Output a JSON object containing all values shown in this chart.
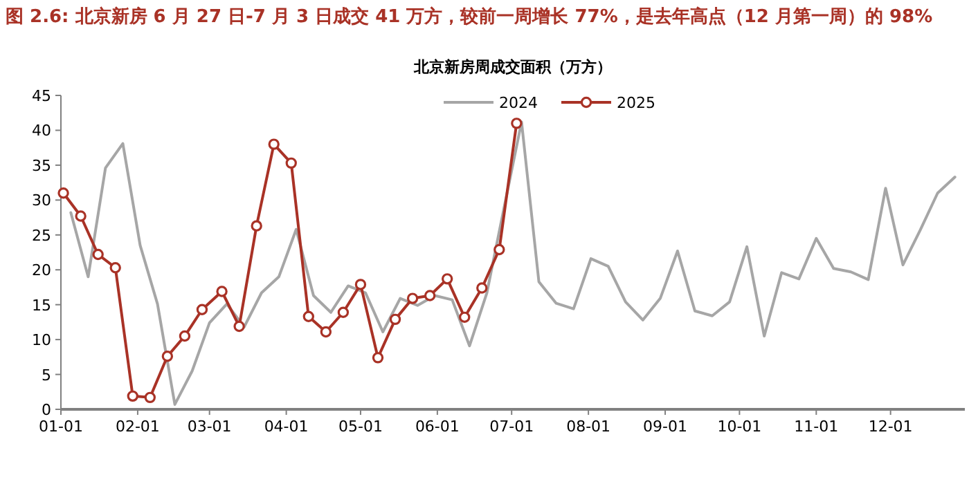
{
  "chart_data": {
    "type": "line",
    "title": "图 2.6: 北京新房 6 月 27 日-7 月 3 日成交 41 万方，较前一周增长 77%，是去年高点（12 月第一周）的 98%",
    "subtitle": "北京新房周成交面积（万方）",
    "series": [
      {
        "name": "2024",
        "color": "#a6a6a6",
        "marker": "none",
        "x": [
          "--01-05",
          "--01-12",
          "--01-19",
          "--01-26",
          "--02-02",
          "--02-09",
          "--02-16",
          "--02-23",
          "--03-01",
          "--03-08",
          "--03-15",
          "--03-22",
          "--03-29",
          "--04-05",
          "--04-12",
          "--04-19",
          "--04-26",
          "--05-03",
          "--05-10",
          "--05-17",
          "--05-24",
          "--05-31",
          "--06-07",
          "--06-14",
          "--06-21",
          "--06-28",
          "--07-05",
          "--07-12",
          "--07-19",
          "--07-26",
          "--08-02",
          "--08-09",
          "--08-16",
          "--08-23",
          "--08-30",
          "--09-06",
          "--09-13",
          "--09-20",
          "--09-27",
          "--10-04",
          "--10-11",
          "--10-18",
          "--10-25",
          "--11-01",
          "--11-08",
          "--11-15",
          "--11-22",
          "--11-29",
          "--12-06",
          "--12-13",
          "--12-20",
          "--12-27"
        ],
        "values": [
          28.2,
          19.0,
          34.6,
          38.1,
          23.5,
          15.1,
          0.7,
          5.5,
          12.4,
          15.1,
          11.8,
          16.7,
          19.0,
          25.8,
          16.3,
          13.9,
          17.7,
          16.7,
          11.1,
          15.9,
          14.9,
          16.3,
          15.7,
          9.1,
          16.7,
          29,
          41.2,
          18.3,
          15.2,
          14.4,
          21.6,
          20.5,
          15.4,
          12.8,
          15.9,
          22.7,
          14.1,
          13.4,
          15.4,
          23.3,
          10.5,
          19.6,
          18.7,
          24.5,
          20.2,
          19.7,
          18.6,
          31.7,
          20.7,
          25.7,
          31.0,
          33.3
        ]
      },
      {
        "name": "2025",
        "color": "#a93226",
        "marker": "circle",
        "x": [
          "--01-02",
          "--01-09",
          "--01-16",
          "--01-23",
          "--01-30",
          "--02-06",
          "--02-13",
          "--02-20",
          "--02-27",
          "--03-06",
          "--03-13",
          "--03-20",
          "--03-27",
          "--04-03",
          "--04-10",
          "--04-17",
          "--04-24",
          "--05-01",
          "--05-08",
          "--05-15",
          "--05-22",
          "--05-29",
          "--06-05",
          "--06-12",
          "--06-19",
          "--06-26",
          "--07-03"
        ],
        "values": [
          31,
          27.7,
          22.2,
          20.3,
          1.9,
          1.7,
          7.6,
          10.5,
          14.3,
          16.9,
          11.9,
          26.3,
          38,
          35.3,
          13.3,
          11.1,
          13.9,
          17.9,
          7.4,
          12.9,
          15.9,
          16.3,
          18.7,
          13.2,
          17.4,
          22.9,
          41
        ]
      }
    ],
    "xlim": [
      "--01-01",
      "--12-31"
    ],
    "xticks": [
      {
        "value": "--01-01",
        "label": "01-01"
      },
      {
        "value": "--02-01",
        "label": "02-01"
      },
      {
        "value": "--03-01",
        "label": "03-01"
      },
      {
        "value": "--04-01",
        "label": "04-01"
      },
      {
        "value": "--05-01",
        "label": "05-01"
      },
      {
        "value": "--06-01",
        "label": "06-01"
      },
      {
        "value": "--07-01",
        "label": "07-01"
      },
      {
        "value": "--08-01",
        "label": "08-01"
      },
      {
        "value": "--09-01",
        "label": "09-01"
      },
      {
        "value": "--10-01",
        "label": "10-01"
      },
      {
        "value": "--11-01",
        "label": "11-01"
      },
      {
        "value": "--12-01",
        "label": "12-01"
      }
    ],
    "ylim": [
      0,
      45
    ],
    "yticks": [
      0,
      5,
      10,
      15,
      20,
      25,
      30,
      35,
      40,
      45
    ],
    "grid": false,
    "legend": "top",
    "line_style": "solid"
  }
}
